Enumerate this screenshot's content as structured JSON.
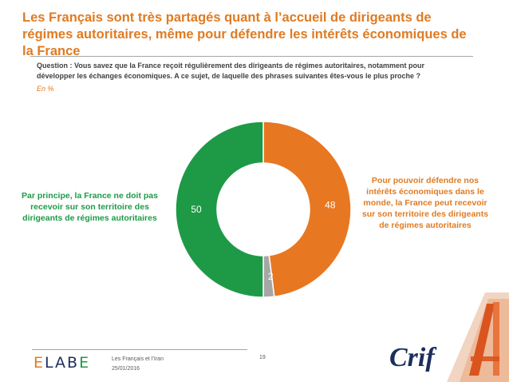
{
  "title": "Les Français sont très partagés quant à l’accueil de dirigeants de régimes autoritaires, même pour défendre les intérêts économiques de la France",
  "question": "Question : Vous savez que la France reçoit régulièrement des dirigeants de régimes autoritaires, notamment pour développer les échanges économiques. A ce sujet, de laquelle des phrases suivantes êtes-vous le plus proche ?",
  "unit_label": "En %",
  "chart_data": {
    "type": "pie",
    "donut": true,
    "categories": [
      "Pour pouvoir défendre nos intérêts économiques dans le monde, la France peut recevoir sur son territoire des dirigeants de régimes autoritaires",
      "",
      "Par principe, la France ne doit pas recevoir sur son territoire des dirigeants de régimes autoritaires"
    ],
    "values": [
      48,
      2,
      50
    ],
    "value_labels": [
      "48",
      "2",
      "50"
    ],
    "colors": [
      "#e87722",
      "#a6a6a6",
      "#1e9a47"
    ],
    "start": "12 o'clock",
    "direction": "clockwise",
    "unit": "%"
  },
  "footer": {
    "brand": "ELABE",
    "study": "Les Français et l’Iran",
    "date": "25/01/2016",
    "page": "19",
    "partner": "Crif"
  }
}
